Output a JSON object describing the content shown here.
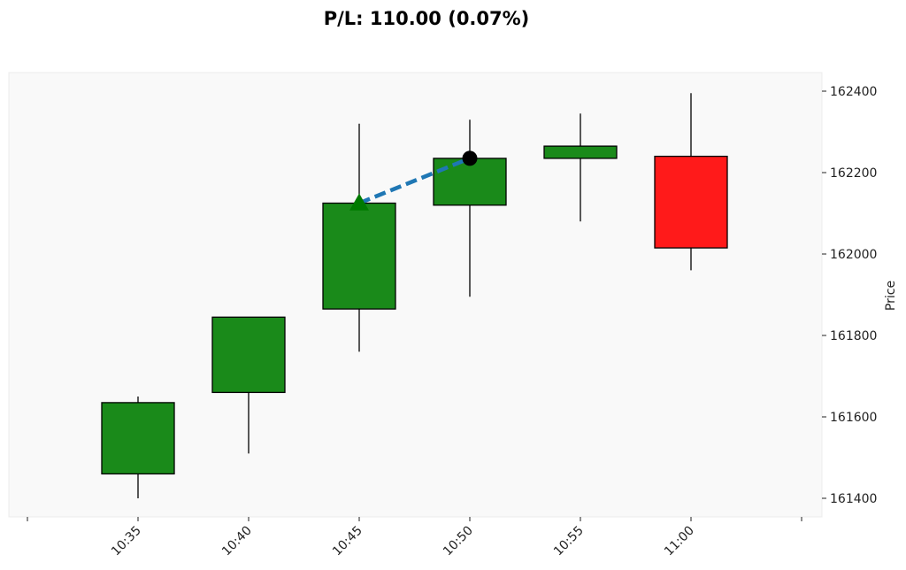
{
  "chart_data": {
    "type": "candlestick",
    "title": "P/L: 110.00 (0.07%)",
    "ylabel": "Price",
    "xlabel": "",
    "y_axis_side": "right",
    "ylim": [
      161360,
      162440
    ],
    "yticks": [
      161400,
      161600,
      161800,
      162000,
      162200,
      162400
    ],
    "x_tick_labels": [
      "10:35",
      "10:40",
      "10:45",
      "10:50",
      "10:55",
      "11:00"
    ],
    "grid": false,
    "candles": [
      {
        "time": "10:35",
        "open": 161460,
        "high": 161650,
        "low": 161400,
        "close": 161635
      },
      {
        "time": "10:40",
        "open": 161660,
        "high": 161845,
        "low": 161510,
        "close": 161845
      },
      {
        "time": "10:45",
        "open": 161865,
        "high": 162320,
        "low": 161760,
        "close": 162125
      },
      {
        "time": "10:50",
        "open": 162120,
        "high": 162330,
        "low": 161895,
        "close": 162235
      },
      {
        "time": "10:55",
        "open": 162235,
        "high": 162345,
        "low": 162080,
        "close": 162265
      },
      {
        "time": "11:00",
        "open": 162240,
        "high": 162395,
        "low": 161960,
        "close": 162015
      }
    ],
    "trade": {
      "entry": {
        "time": "10:45",
        "price": 162125,
        "marker": "triangle-up"
      },
      "exit": {
        "time": "10:50",
        "price": 162235,
        "marker": "circle"
      }
    },
    "colors": {
      "up": "#1a8a1a",
      "down": "#ff1a1a",
      "edge": "#000000",
      "trade_line": "#1f77b4",
      "entry_marker": "#007a00",
      "exit_marker": "#000000",
      "plot_bg": "#f9f9f9"
    }
  }
}
